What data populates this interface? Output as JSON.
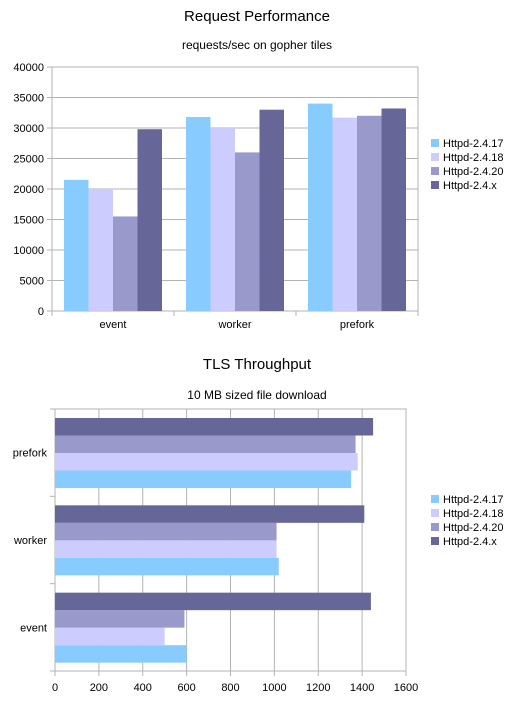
{
  "chart_data": [
    {
      "type": "bar",
      "orientation": "vertical",
      "title": "Request Performance",
      "subtitle": "requests/sec on gopher tiles",
      "xlabel": "",
      "ylabel": "",
      "categories": [
        "event",
        "worker",
        "prefork"
      ],
      "series": [
        {
          "name": "Httpd-2.4.17",
          "color": "#88CCFF",
          "values": [
            21500,
            31800,
            34000
          ]
        },
        {
          "name": "Httpd-2.4.18",
          "color": "#CCCCFF",
          "values": [
            20000,
            30000,
            31700
          ]
        },
        {
          "name": "Httpd-2.4.20",
          "color": "#9999CC",
          "values": [
            15500,
            26000,
            32000
          ]
        },
        {
          "name": "Httpd-2.4.x",
          "color": "#666699",
          "values": [
            29800,
            33000,
            33200
          ]
        }
      ],
      "ylim": [
        0,
        40000
      ],
      "yticks": [
        0,
        5000,
        10000,
        15000,
        20000,
        25000,
        30000,
        35000,
        40000
      ],
      "grid": true,
      "legend": "right"
    },
    {
      "type": "bar",
      "orientation": "horizontal",
      "title": "TLS Throughput",
      "subtitle": "10 MB sized file download",
      "xlabel": "",
      "ylabel": "",
      "categories": [
        "event",
        "worker",
        "prefork"
      ],
      "series": [
        {
          "name": "Httpd-2.4.17",
          "color": "#88CCFF",
          "values": [
            600,
            1020,
            1350
          ]
        },
        {
          "name": "Httpd-2.4.18",
          "color": "#CCCCFF",
          "values": [
            500,
            1010,
            1380
          ]
        },
        {
          "name": "Httpd-2.4.20",
          "color": "#9999CC",
          "values": [
            590,
            1010,
            1370
          ]
        },
        {
          "name": "Httpd-2.4.x",
          "color": "#666699",
          "values": [
            1440,
            1410,
            1450
          ]
        }
      ],
      "xlim": [
        0,
        1600
      ],
      "xticks": [
        0,
        200,
        400,
        600,
        800,
        1000,
        1200,
        1400,
        1600
      ],
      "grid": true,
      "legend": "right"
    }
  ]
}
